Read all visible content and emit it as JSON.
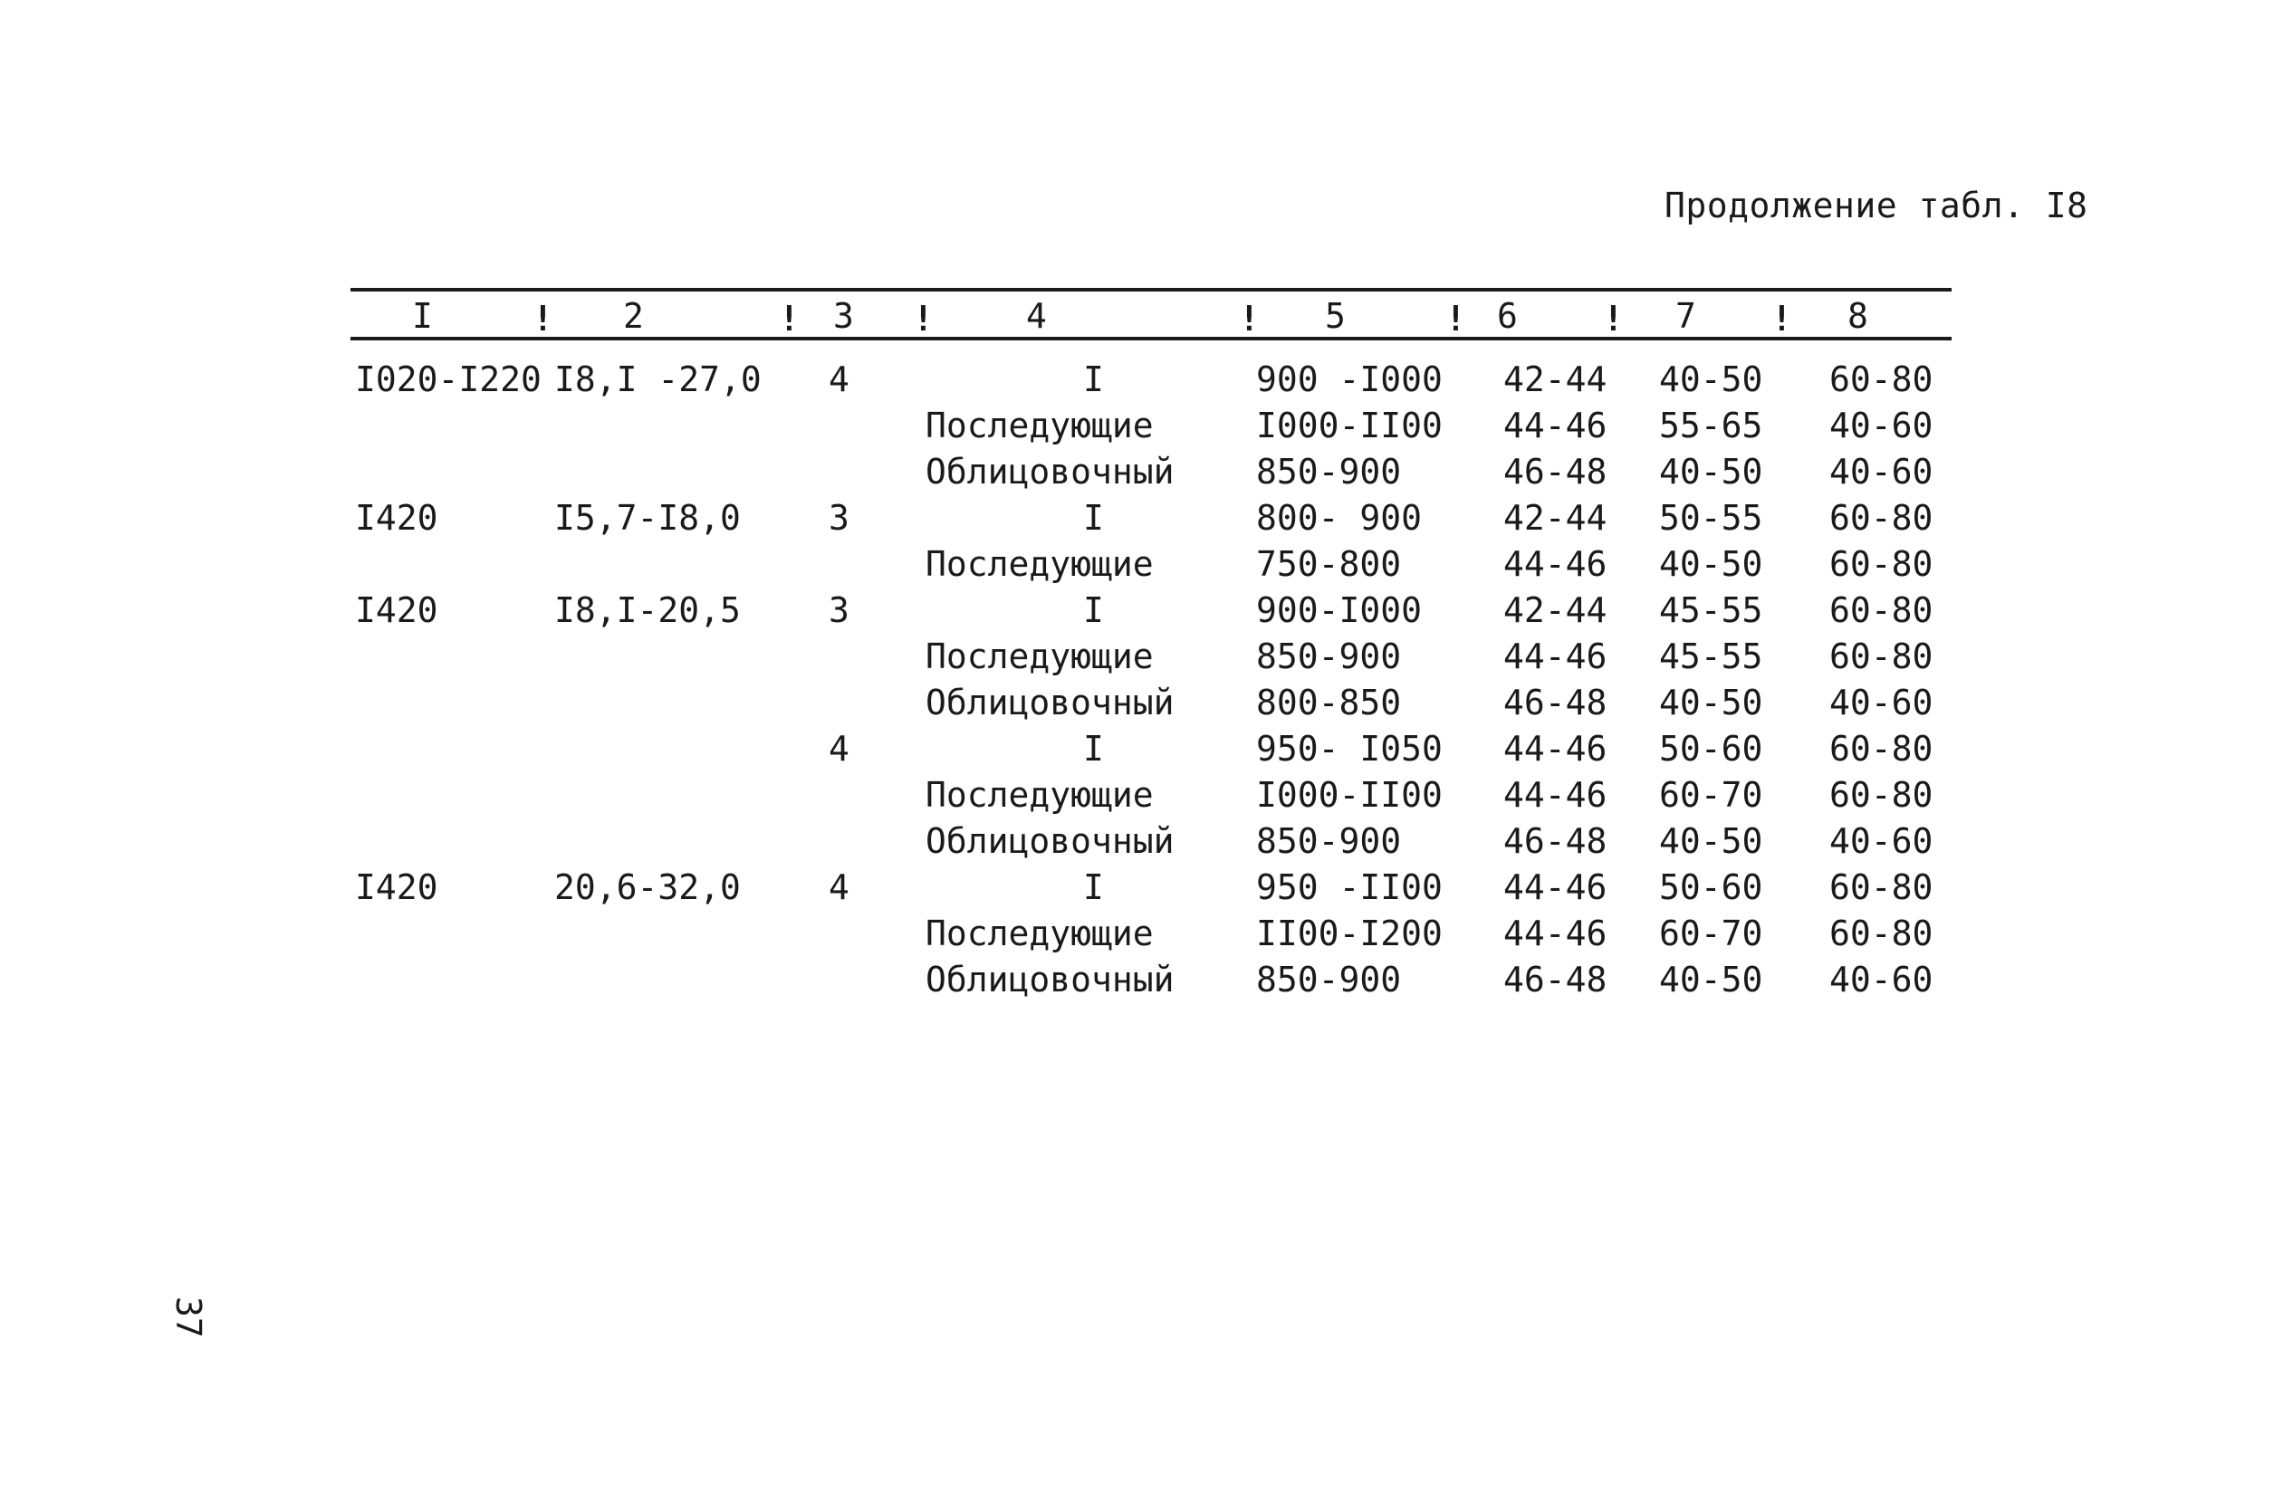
{
  "caption": "Продолжение табл. I8",
  "header": {
    "c1": "I",
    "c2": "2",
    "c3": "3",
    "c4": "4",
    "c5": "5",
    "c6": "6",
    "c7": "7",
    "c8": "8",
    "sep": "!"
  },
  "rows": [
    {
      "c1": "I020-I220",
      "c2": "I8,I -27,0",
      "c3": "4",
      "c4": "I",
      "c5": "900 -I000",
      "c6": "42-44",
      "c7": "40-50",
      "c8": "60-80"
    },
    {
      "c1": "",
      "c2": "",
      "c3": "",
      "c4": "Последующие",
      "c5": "I000-II00",
      "c6": "44-46",
      "c7": "55-65",
      "c8": "40-60"
    },
    {
      "c1": "",
      "c2": "",
      "c3": "",
      "c4": "Облицовочный",
      "c5": "850-900",
      "c6": "46-48",
      "c7": "40-50",
      "c8": "40-60"
    },
    {
      "c1": "I420",
      "c2": "I5,7-I8,0",
      "c3": "3",
      "c4": "I",
      "c5": "800- 900",
      "c6": "42-44",
      "c7": "50-55",
      "c8": "60-80"
    },
    {
      "c1": "",
      "c2": "",
      "c3": "",
      "c4": "Последующие",
      "c5": "750-800",
      "c6": "44-46",
      "c7": "40-50",
      "c8": "60-80"
    },
    {
      "c1": "I420",
      "c2": "I8,I-20,5",
      "c3": "3",
      "c4": "I",
      "c5": "900-I000",
      "c6": "42-44",
      "c7": "45-55",
      "c8": "60-80"
    },
    {
      "c1": "",
      "c2": "",
      "c3": "",
      "c4": "Последующие",
      "c5": "850-900",
      "c6": "44-46",
      "c7": "45-55",
      "c8": "60-80"
    },
    {
      "c1": "",
      "c2": "",
      "c3": "",
      "c4": "Облицовочный",
      "c5": "800-850",
      "c6": "46-48",
      "c7": "40-50",
      "c8": "40-60"
    },
    {
      "c1": "",
      "c2": "",
      "c3": "4",
      "c4": "I",
      "c5": "950- I050",
      "c6": "44-46",
      "c7": "50-60",
      "c8": "60-80"
    },
    {
      "c1": "",
      "c2": "",
      "c3": "",
      "c4": "Последующие",
      "c5": "I000-II00",
      "c6": "44-46",
      "c7": "60-70",
      "c8": "60-80"
    },
    {
      "c1": "",
      "c2": "",
      "c3": "",
      "c4": "Облицовочный",
      "c5": "850-900",
      "c6": "46-48",
      "c7": "40-50",
      "c8": "40-60"
    },
    {
      "c1": "I420",
      "c2": "20,6-32,0",
      "c3": "4",
      "c4": "I",
      "c5": "950 -II00",
      "c6": "44-46",
      "c7": "50-60",
      "c8": "60-80"
    },
    {
      "c1": "",
      "c2": "",
      "c3": "",
      "c4": "Последующие",
      "c5": "II00-I200",
      "c6": "44-46",
      "c7": "60-70",
      "c8": "60-80"
    },
    {
      "c1": "",
      "c2": "",
      "c3": "",
      "c4": "Облицовочный",
      "c5": "850-900",
      "c6": "46-48",
      "c7": "40-50",
      "c8": "40-60"
    }
  ],
  "page_number": "37"
}
